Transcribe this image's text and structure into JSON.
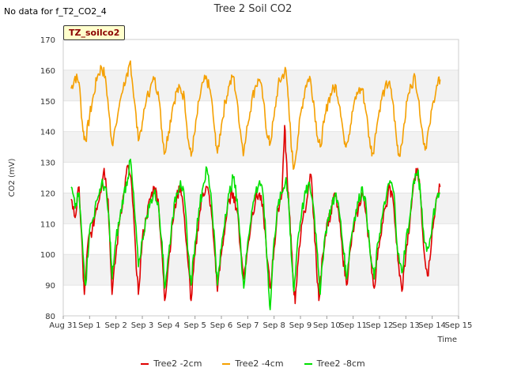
{
  "header": {
    "no_data_text": "No data for f_T2_CO2_4",
    "title": "Tree 2 Soil CO2",
    "badge": "TZ_soilco2"
  },
  "chart_data": {
    "type": "line",
    "ylabel": "CO2 (mV)",
    "xlabel": "Time",
    "ylim": [
      80,
      170
    ],
    "yticks": [
      80,
      90,
      100,
      110,
      120,
      130,
      140,
      150,
      160,
      170
    ],
    "xlim": [
      0,
      15
    ],
    "xticks": [
      {
        "v": 0,
        "label": "Aug 31"
      },
      {
        "v": 1,
        "label": "Sep 1"
      },
      {
        "v": 2,
        "label": "Sep 2"
      },
      {
        "v": 3,
        "label": "Sep 3"
      },
      {
        "v": 4,
        "label": "Sep 4"
      },
      {
        "v": 5,
        "label": "Sep 5"
      },
      {
        "v": 6,
        "label": "Sep 6"
      },
      {
        "v": 7,
        "label": "Sep 7"
      },
      {
        "v": 8,
        "label": "Sep 8"
      },
      {
        "v": 9,
        "label": "Sep 9"
      },
      {
        "v": 10,
        "label": "Sep 10"
      },
      {
        "v": 11,
        "label": "Sep 11"
      },
      {
        "v": 12,
        "label": "Sep 12"
      },
      {
        "v": 13,
        "label": "Sep 13"
      },
      {
        "v": 14,
        "label": "Sep 14"
      },
      {
        "v": 15,
        "label": "Sep 15"
      }
    ],
    "x_unit": "days since Aug 31",
    "series": [
      {
        "name": "Tree2 -2cm",
        "color": "#e00000",
        "points": [
          [
            0.3,
            118
          ],
          [
            0.45,
            112
          ],
          [
            0.6,
            122
          ],
          [
            0.75,
            95
          ],
          [
            0.8,
            87
          ],
          [
            0.95,
            105
          ],
          [
            1.1,
            108
          ],
          [
            1.25,
            115
          ],
          [
            1.4,
            120
          ],
          [
            1.55,
            128
          ],
          [
            1.7,
            118
          ],
          [
            1.85,
            87
          ],
          [
            2.0,
            100
          ],
          [
            2.15,
            112
          ],
          [
            2.3,
            120
          ],
          [
            2.45,
            129
          ],
          [
            2.6,
            122
          ],
          [
            2.75,
            100
          ],
          [
            2.85,
            87
          ],
          [
            3.0,
            105
          ],
          [
            3.15,
            112
          ],
          [
            3.3,
            118
          ],
          [
            3.45,
            122
          ],
          [
            3.6,
            118
          ],
          [
            3.75,
            100
          ],
          [
            3.85,
            85
          ],
          [
            4.0,
            98
          ],
          [
            4.15,
            110
          ],
          [
            4.3,
            118
          ],
          [
            4.45,
            123
          ],
          [
            4.6,
            112
          ],
          [
            4.75,
            96
          ],
          [
            4.85,
            85
          ],
          [
            5.0,
            100
          ],
          [
            5.15,
            112
          ],
          [
            5.3,
            120
          ],
          [
            5.45,
            122
          ],
          [
            5.6,
            116
          ],
          [
            5.75,
            100
          ],
          [
            5.85,
            88
          ],
          [
            6.0,
            100
          ],
          [
            6.15,
            110
          ],
          [
            6.3,
            118
          ],
          [
            6.45,
            120
          ],
          [
            6.6,
            114
          ],
          [
            6.75,
            100
          ],
          [
            6.85,
            92
          ],
          [
            7.0,
            102
          ],
          [
            7.15,
            112
          ],
          [
            7.3,
            118
          ],
          [
            7.45,
            120
          ],
          [
            7.6,
            113
          ],
          [
            7.75,
            98
          ],
          [
            7.85,
            89
          ],
          [
            8.0,
            102
          ],
          [
            8.15,
            115
          ],
          [
            8.3,
            120
          ],
          [
            8.4,
            142
          ],
          [
            8.5,
            125
          ],
          [
            8.6,
            112
          ],
          [
            8.7,
            95
          ],
          [
            8.8,
            84
          ],
          [
            8.95,
            102
          ],
          [
            9.1,
            112
          ],
          [
            9.25,
            118
          ],
          [
            9.4,
            126
          ],
          [
            9.5,
            112
          ],
          [
            9.6,
            98
          ],
          [
            9.7,
            85
          ],
          [
            9.85,
            100
          ],
          [
            10.0,
            110
          ],
          [
            10.15,
            113
          ],
          [
            10.3,
            120
          ],
          [
            10.45,
            114
          ],
          [
            10.6,
            100
          ],
          [
            10.75,
            90
          ],
          [
            10.9,
            102
          ],
          [
            11.05,
            110
          ],
          [
            11.2,
            115
          ],
          [
            11.35,
            120
          ],
          [
            11.5,
            113
          ],
          [
            11.65,
            100
          ],
          [
            11.8,
            89
          ],
          [
            11.95,
            102
          ],
          [
            12.1,
            110
          ],
          [
            12.25,
            116
          ],
          [
            12.4,
            122
          ],
          [
            12.55,
            115
          ],
          [
            12.7,
            98
          ],
          [
            12.85,
            88
          ],
          [
            13.0,
            100
          ],
          [
            13.15,
            110
          ],
          [
            13.3,
            124
          ],
          [
            13.45,
            128
          ],
          [
            13.55,
            120
          ],
          [
            13.7,
            100
          ],
          [
            13.85,
            93
          ],
          [
            14.0,
            108
          ],
          [
            14.15,
            118
          ],
          [
            14.3,
            122
          ]
        ]
      },
      {
        "name": "Tree2 -4cm",
        "color": "#f5a000",
        "points": [
          [
            0.3,
            154
          ],
          [
            0.45,
            158
          ],
          [
            0.6,
            156
          ],
          [
            0.75,
            140
          ],
          [
            0.85,
            137
          ],
          [
            1.0,
            145
          ],
          [
            1.15,
            152
          ],
          [
            1.3,
            158
          ],
          [
            1.45,
            161
          ],
          [
            1.6,
            158
          ],
          [
            1.75,
            145
          ],
          [
            1.85,
            136
          ],
          [
            2.0,
            142
          ],
          [
            2.15,
            150
          ],
          [
            2.3,
            156
          ],
          [
            2.45,
            158
          ],
          [
            2.55,
            163
          ],
          [
            2.7,
            150
          ],
          [
            2.85,
            137
          ],
          [
            3.0,
            143
          ],
          [
            3.15,
            150
          ],
          [
            3.3,
            154
          ],
          [
            3.45,
            157
          ],
          [
            3.6,
            153
          ],
          [
            3.75,
            140
          ],
          [
            3.85,
            133
          ],
          [
            4.0,
            140
          ],
          [
            4.15,
            148
          ],
          [
            4.3,
            153
          ],
          [
            4.45,
            154
          ],
          [
            4.6,
            151
          ],
          [
            4.75,
            137
          ],
          [
            4.85,
            132
          ],
          [
            5.0,
            140
          ],
          [
            5.15,
            150
          ],
          [
            5.3,
            156
          ],
          [
            5.45,
            157
          ],
          [
            5.6,
            152
          ],
          [
            5.75,
            140
          ],
          [
            5.85,
            133
          ],
          [
            6.0,
            142
          ],
          [
            6.15,
            150
          ],
          [
            6.3,
            155
          ],
          [
            6.45,
            158
          ],
          [
            6.6,
            150
          ],
          [
            6.75,
            138
          ],
          [
            6.85,
            133
          ],
          [
            7.0,
            142
          ],
          [
            7.15,
            150
          ],
          [
            7.3,
            155
          ],
          [
            7.45,
            157
          ],
          [
            7.6,
            150
          ],
          [
            7.75,
            138
          ],
          [
            7.85,
            136
          ],
          [
            8.0,
            145
          ],
          [
            8.15,
            155
          ],
          [
            8.3,
            158
          ],
          [
            8.45,
            160
          ],
          [
            8.55,
            150
          ],
          [
            8.65,
            135
          ],
          [
            8.75,
            128
          ],
          [
            8.9,
            138
          ],
          [
            9.05,
            148
          ],
          [
            9.2,
            155
          ],
          [
            9.35,
            158
          ],
          [
            9.5,
            150
          ],
          [
            9.65,
            138
          ],
          [
            9.75,
            135
          ],
          [
            9.9,
            143
          ],
          [
            10.05,
            150
          ],
          [
            10.2,
            153
          ],
          [
            10.35,
            155
          ],
          [
            10.5,
            148
          ],
          [
            10.65,
            138
          ],
          [
            10.75,
            136
          ],
          [
            10.9,
            142
          ],
          [
            11.05,
            150
          ],
          [
            11.2,
            153
          ],
          [
            11.35,
            154
          ],
          [
            11.5,
            146
          ],
          [
            11.65,
            135
          ],
          [
            11.75,
            133
          ],
          [
            11.9,
            142
          ],
          [
            12.05,
            150
          ],
          [
            12.2,
            154
          ],
          [
            12.35,
            156
          ],
          [
            12.5,
            150
          ],
          [
            12.65,
            137
          ],
          [
            12.75,
            132
          ],
          [
            12.9,
            140
          ],
          [
            13.05,
            150
          ],
          [
            13.2,
            155
          ],
          [
            13.35,
            158
          ],
          [
            13.5,
            150
          ],
          [
            13.65,
            138
          ],
          [
            13.75,
            135
          ],
          [
            13.9,
            142
          ],
          [
            14.05,
            150
          ],
          [
            14.2,
            155
          ],
          [
            14.3,
            157
          ]
        ]
      },
      {
        "name": "Tree2 -8cm",
        "color": "#00e000",
        "points": [
          [
            0.3,
            122
          ],
          [
            0.45,
            115
          ],
          [
            0.6,
            120
          ],
          [
            0.75,
            100
          ],
          [
            0.85,
            90
          ],
          [
            1.0,
            108
          ],
          [
            1.15,
            112
          ],
          [
            1.3,
            118
          ],
          [
            1.45,
            123
          ],
          [
            1.6,
            122
          ],
          [
            1.75,
            110
          ],
          [
            1.85,
            92
          ],
          [
            2.0,
            105
          ],
          [
            2.15,
            112
          ],
          [
            2.3,
            120
          ],
          [
            2.45,
            125
          ],
          [
            2.55,
            131
          ],
          [
            2.7,
            115
          ],
          [
            2.85,
            96
          ],
          [
            3.0,
            105
          ],
          [
            3.15,
            112
          ],
          [
            3.3,
            117
          ],
          [
            3.45,
            120
          ],
          [
            3.6,
            117
          ],
          [
            3.75,
            104
          ],
          [
            3.85,
            89
          ],
          [
            4.0,
            100
          ],
          [
            4.15,
            112
          ],
          [
            4.3,
            120
          ],
          [
            4.45,
            124
          ],
          [
            4.6,
            118
          ],
          [
            4.75,
            100
          ],
          [
            4.85,
            90
          ],
          [
            5.0,
            104
          ],
          [
            5.15,
            115
          ],
          [
            5.3,
            122
          ],
          [
            5.45,
            128
          ],
          [
            5.6,
            120
          ],
          [
            5.75,
            104
          ],
          [
            5.85,
            90
          ],
          [
            6.0,
            102
          ],
          [
            6.15,
            113
          ],
          [
            6.3,
            120
          ],
          [
            6.45,
            125
          ],
          [
            6.6,
            118
          ],
          [
            6.75,
            100
          ],
          [
            6.85,
            89
          ],
          [
            7.0,
            104
          ],
          [
            7.15,
            114
          ],
          [
            7.3,
            120
          ],
          [
            7.45,
            124
          ],
          [
            7.6,
            118
          ],
          [
            7.75,
            96
          ],
          [
            7.85,
            82
          ],
          [
            8.0,
            105
          ],
          [
            8.15,
            116
          ],
          [
            8.3,
            120
          ],
          [
            8.45,
            125
          ],
          [
            8.55,
            118
          ],
          [
            8.65,
            100
          ],
          [
            8.75,
            88
          ],
          [
            8.9,
            105
          ],
          [
            9.05,
            114
          ],
          [
            9.2,
            120
          ],
          [
            9.35,
            123
          ],
          [
            9.5,
            115
          ],
          [
            9.65,
            100
          ],
          [
            9.75,
            87
          ],
          [
            9.9,
            104
          ],
          [
            10.05,
            112
          ],
          [
            10.2,
            116
          ],
          [
            10.35,
            120
          ],
          [
            10.5,
            112
          ],
          [
            10.65,
            100
          ],
          [
            10.75,
            92
          ],
          [
            10.9,
            104
          ],
          [
            11.05,
            112
          ],
          [
            11.2,
            117
          ],
          [
            11.35,
            122
          ],
          [
            11.5,
            115
          ],
          [
            11.65,
            100
          ],
          [
            11.8,
            92
          ],
          [
            11.95,
            104
          ],
          [
            12.1,
            112
          ],
          [
            12.25,
            118
          ],
          [
            12.4,
            124
          ],
          [
            12.55,
            120
          ],
          [
            12.7,
            100
          ],
          [
            12.85,
            94
          ],
          [
            13.0,
            104
          ],
          [
            13.15,
            112
          ],
          [
            13.3,
            124
          ],
          [
            13.45,
            127
          ],
          [
            13.55,
            120
          ],
          [
            13.7,
            104
          ],
          [
            13.85,
            102
          ],
          [
            14.0,
            110
          ],
          [
            14.15,
            118
          ],
          [
            14.3,
            120
          ]
        ]
      }
    ],
    "legend_position": "bottom",
    "grid": "alternating horizontal bands"
  }
}
